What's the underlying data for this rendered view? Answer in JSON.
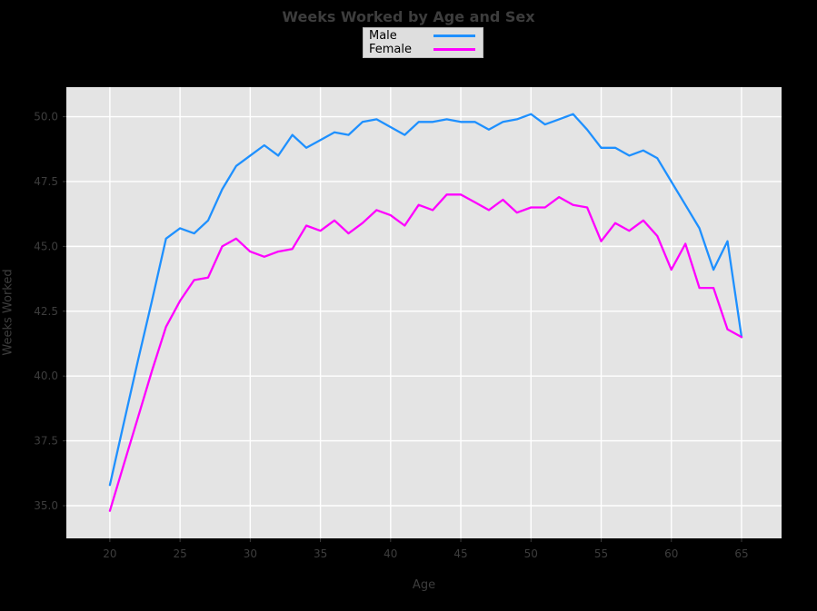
{
  "figure": {
    "title": "Weeks Worked by Age and Sex",
    "background_color": "#000000",
    "panel_color": "#e4e4e4",
    "grid_color": "#ffffff",
    "tick_text_color": "#3d3d3d"
  },
  "legend": {
    "background_color": "#dedede",
    "items": [
      {
        "label": "Male",
        "color": "#1e90ff"
      },
      {
        "label": "Female",
        "color": "#ff00ff"
      }
    ]
  },
  "chart_data": {
    "type": "line",
    "title": "Weeks Worked by Age and Sex",
    "xlabel": "Age",
    "ylabel": "Weeks Worked",
    "grid": true,
    "legend_position": "top-center",
    "xlim": [
      16.9,
      67.85
    ],
    "ylim": [
      33.74,
      51.14
    ],
    "xticks": [
      20,
      25,
      30,
      35,
      40,
      45,
      50,
      55,
      60,
      65
    ],
    "xtick_labels": [
      "20",
      "25",
      "30",
      "35",
      "40",
      "45",
      "50",
      "55",
      "60",
      "65"
    ],
    "yticks": [
      35.0,
      37.5,
      40.0,
      42.5,
      45.0,
      47.5,
      50.0
    ],
    "ytick_labels": [
      "35.0",
      "37.5",
      "40.0",
      "42.5",
      "45.0",
      "47.5",
      "50.0"
    ],
    "x": [
      20,
      21,
      22,
      23,
      24,
      25,
      26,
      27,
      28,
      29,
      30,
      31,
      32,
      33,
      34,
      35,
      36,
      37,
      38,
      39,
      40,
      41,
      42,
      43,
      44,
      45,
      46,
      47,
      48,
      49,
      50,
      51,
      52,
      53,
      54,
      55,
      56,
      57,
      58,
      59,
      60,
      61,
      62,
      63,
      64,
      65
    ],
    "series": [
      {
        "name": "Male",
        "color": "#1e90ff",
        "values": [
          35.8,
          38.2,
          40.6,
          42.9,
          45.3,
          45.7,
          45.5,
          46.0,
          47.2,
          48.1,
          48.5,
          48.9,
          48.5,
          49.3,
          48.8,
          49.1,
          49.4,
          49.3,
          49.8,
          49.9,
          49.6,
          49.3,
          49.8,
          49.8,
          49.9,
          49.8,
          49.8,
          49.5,
          49.8,
          49.9,
          50.1,
          49.7,
          49.9,
          50.1,
          49.5,
          48.8,
          48.8,
          48.5,
          48.7,
          48.4,
          47.5,
          46.6,
          45.7,
          44.1,
          45.2,
          41.5
        ]
      },
      {
        "name": "Female",
        "color": "#ff00ff",
        "values": [
          34.8,
          36.6,
          38.4,
          40.2,
          41.9,
          42.9,
          43.7,
          43.8,
          45.0,
          45.3,
          44.8,
          44.6,
          44.8,
          44.9,
          45.8,
          45.6,
          46.0,
          45.5,
          45.9,
          46.4,
          46.2,
          45.8,
          46.6,
          46.4,
          47.0,
          47.0,
          46.7,
          46.4,
          46.8,
          46.3,
          46.5,
          46.5,
          46.9,
          46.6,
          46.5,
          45.2,
          45.9,
          45.6,
          46.0,
          45.4,
          44.1,
          45.1,
          43.4,
          43.4,
          41.8,
          41.5
        ]
      }
    ]
  }
}
